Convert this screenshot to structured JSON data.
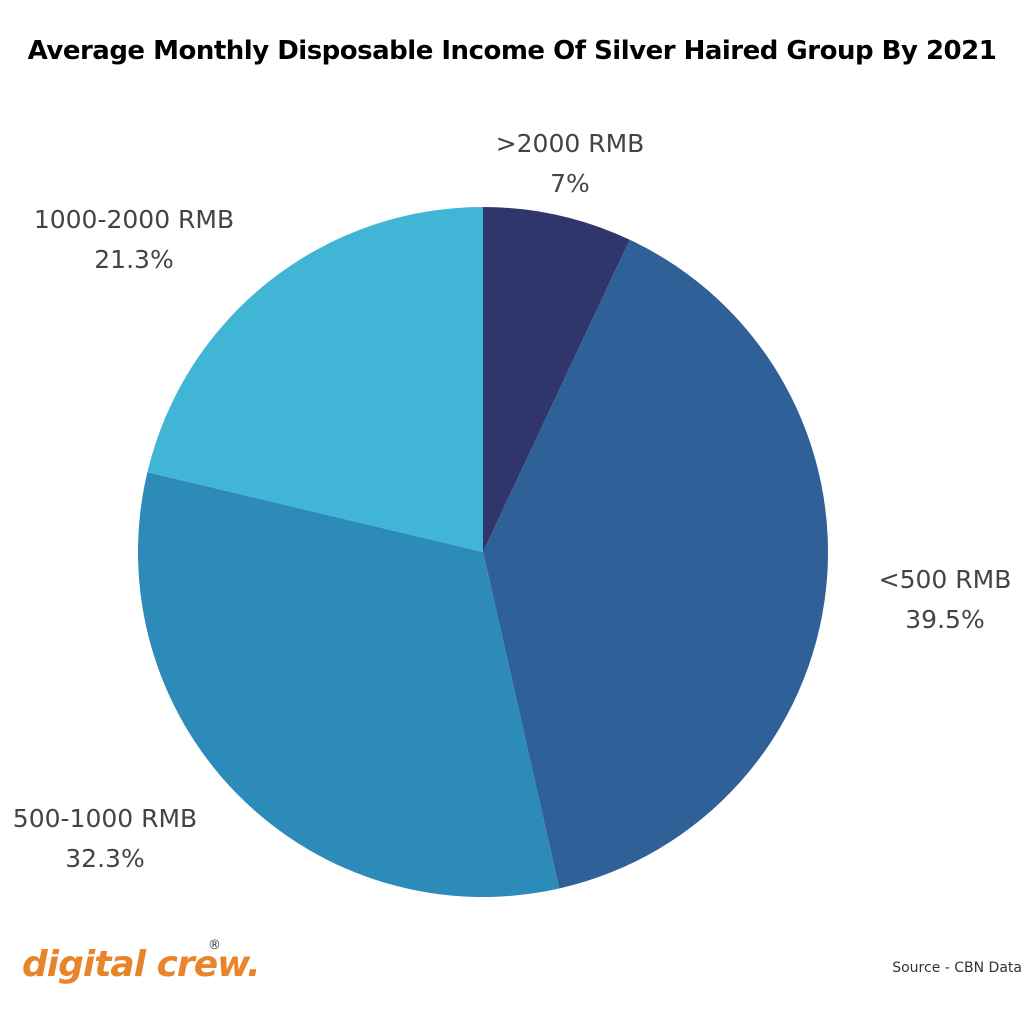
{
  "chart_data": {
    "type": "pie",
    "title": "Average Monthly Disposable Income Of Silver Haired Group By 2021",
    "slices": [
      {
        "label": ">2000 RMB",
        "value": 7,
        "value_label": "7%",
        "color": "#30356b"
      },
      {
        "label": "<500 RMB",
        "value": 39.5,
        "value_label": "39.5%",
        "color": "#2f6097"
      },
      {
        "label": "500-1000 RMB",
        "value": 32.3,
        "value_label": "32.3%",
        "color": "#2d8bba"
      },
      {
        "label": "1000-2000 RMB",
        "value": 21.3,
        "value_label": "21.3%",
        "color": "#41b5d6"
      }
    ],
    "start_angle_deg": 0,
    "direction": "clockwise"
  },
  "branding": {
    "logo_text": "digital crew.",
    "logo_mark": "®",
    "logo_color": "#e8852a"
  },
  "source": "Source - CBN Data"
}
